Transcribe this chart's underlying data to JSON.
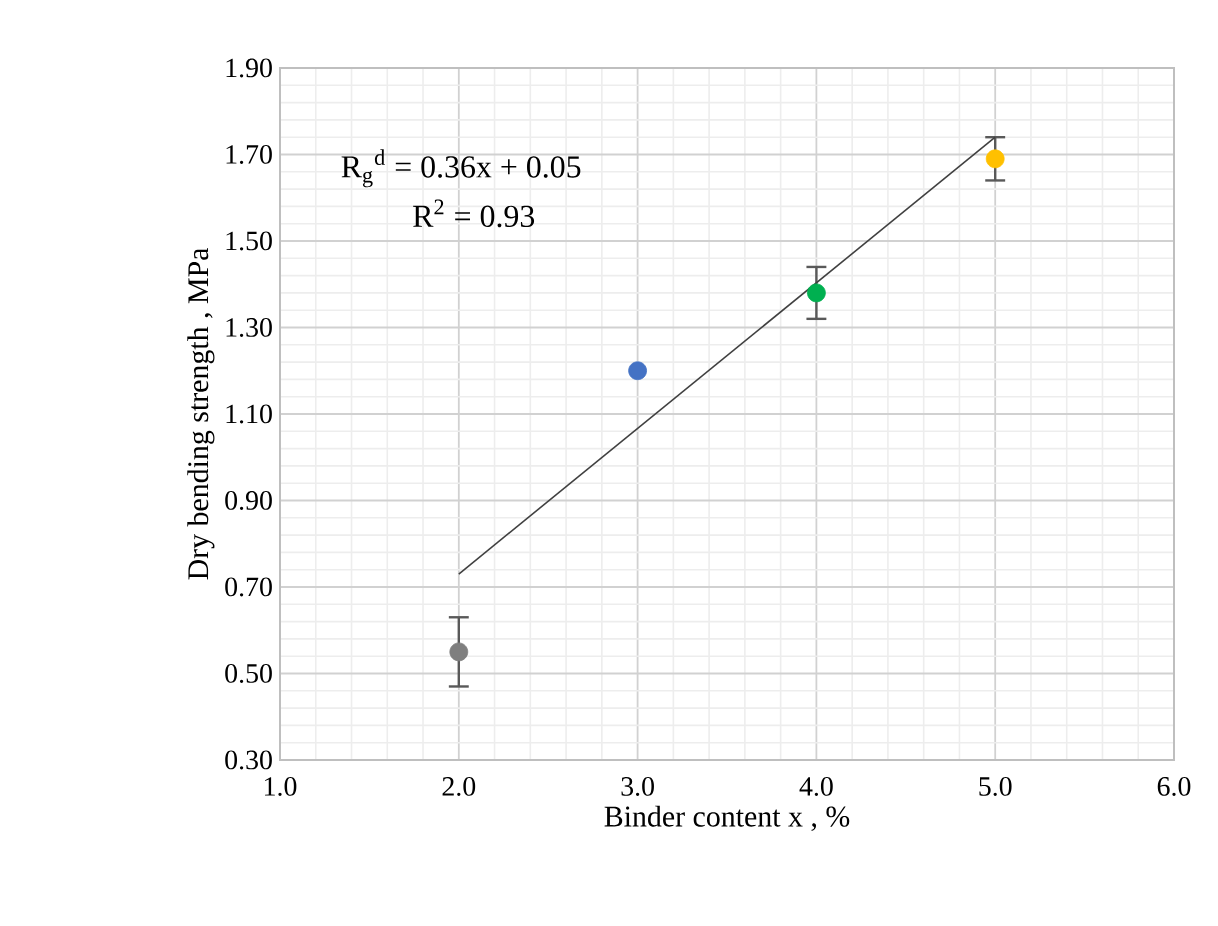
{
  "chart_data": {
    "type": "scatter",
    "xlabel": "Binder content x , %",
    "ylabel": "Dry bending strength , MPa",
    "xlim": [
      1,
      6
    ],
    "ylim": [
      0.3,
      1.9
    ],
    "xticks": [
      {
        "value": 1,
        "label": "1.0"
      },
      {
        "value": 2,
        "label": "2.0"
      },
      {
        "value": 3,
        "label": "3.0"
      },
      {
        "value": 4,
        "label": "4.0"
      },
      {
        "value": 5,
        "label": "5.0"
      },
      {
        "value": 6,
        "label": "6.0"
      }
    ],
    "yticks": [
      {
        "value": 0.3,
        "label": "0.30"
      },
      {
        "value": 0.5,
        "label": "0.50"
      },
      {
        "value": 0.7,
        "label": "0.70"
      },
      {
        "value": 0.9,
        "label": "0.90"
      },
      {
        "value": 1.1,
        "label": "1.10"
      },
      {
        "value": 1.3,
        "label": "1.30"
      },
      {
        "value": 1.5,
        "label": "1.50"
      },
      {
        "value": 1.7,
        "label": "1.70"
      },
      {
        "value": 1.9,
        "label": "1.90"
      }
    ],
    "grid": true,
    "annotations": [
      "R$_{g}$$^{d}$ = 0.36x + 0.05",
      "R$^{2}$ = 0.93"
    ],
    "series": [
      {
        "x": [
          2,
          3,
          4,
          5
        ],
        "values": [
          0.55,
          1.2,
          1.38,
          1.69
        ],
        "marker": "circle",
        "errors": [
          0.08,
          null,
          0.06,
          0.05
        ],
        "colors": [
          "#7f7f7f",
          "#4472c4",
          "#00b050",
          "#ffc000"
        ]
      },
      {
        "type": "line",
        "x": [
          2,
          5
        ],
        "values": [
          0.73,
          1.74
        ],
        "color": "#404040",
        "marker": "none"
      }
    ]
  }
}
